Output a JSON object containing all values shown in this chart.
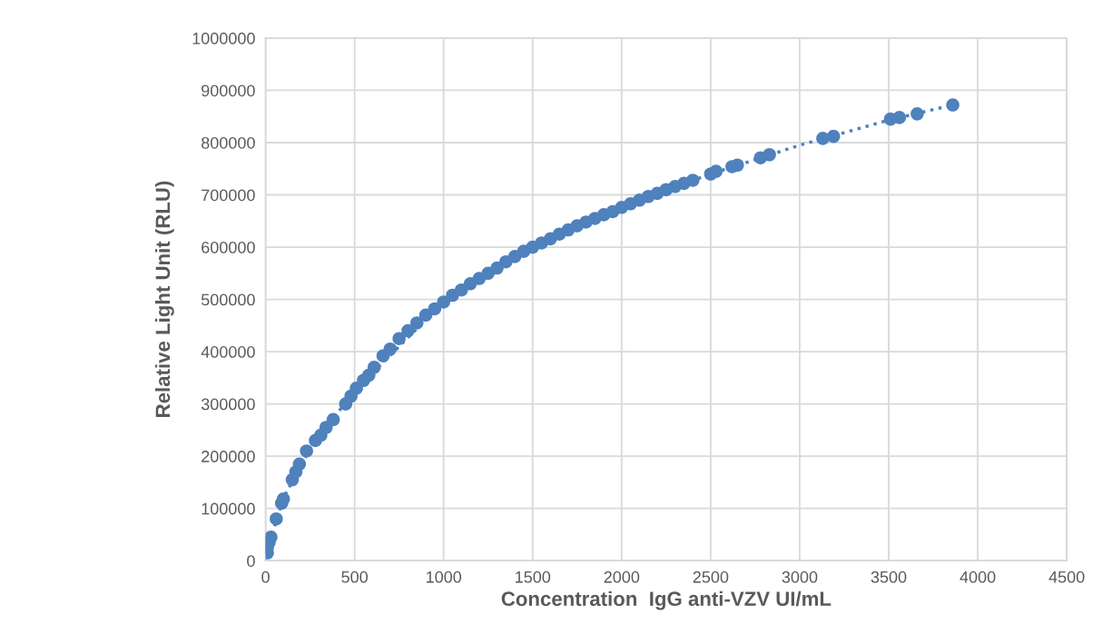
{
  "chart_data": {
    "type": "scatter",
    "xlabel": "Concentration  IgG anti-VZV UI/mL",
    "ylabel": "Relative Light Unit (RLU)",
    "xlim": [
      0,
      4500
    ],
    "xticks": [
      0,
      500,
      1000,
      1500,
      2000,
      2500,
      3000,
      3500,
      4000,
      4500
    ],
    "ylim": [
      0,
      1000000
    ],
    "yticks": [
      0,
      100000,
      200000,
      300000,
      400000,
      500000,
      600000,
      700000,
      800000,
      900000,
      1000000
    ],
    "grid": true,
    "marker": "circle",
    "series": [
      {
        "color": "#4f81bd",
        "x": [
          10,
          10,
          20,
          30,
          60,
          90,
          100,
          150,
          170,
          190,
          230,
          280,
          310,
          340,
          380,
          450,
          480,
          510,
          550,
          580,
          610,
          660,
          700,
          750,
          800,
          850,
          900,
          950,
          1000,
          1050,
          1100,
          1150,
          1200,
          1250,
          1300,
          1350,
          1400,
          1450,
          1500,
          1550,
          1600,
          1650,
          1700,
          1750,
          1800,
          1850,
          1900,
          1950,
          2000,
          2050,
          2100,
          2150,
          2200,
          2250,
          2300,
          2350,
          2400,
          2500,
          2530,
          2620,
          2650,
          2780,
          2830,
          3130,
          3190,
          3510,
          3560,
          3660,
          3860
        ],
        "values": [
          15000,
          25000,
          35000,
          45000,
          80000,
          110000,
          118000,
          155000,
          170000,
          185000,
          210000,
          230000,
          240000,
          255000,
          270000,
          300000,
          315000,
          330000,
          345000,
          355000,
          370000,
          392000,
          405000,
          425000,
          440000,
          455000,
          470000,
          482000,
          495000,
          508000,
          518000,
          530000,
          540000,
          550000,
          560000,
          572000,
          582000,
          592000,
          600000,
          608000,
          616000,
          625000,
          633000,
          641000,
          648000,
          655000,
          662000,
          668000,
          676000,
          683000,
          690000,
          697000,
          703000,
          710000,
          716000,
          722000,
          728000,
          740000,
          745000,
          754000,
          757000,
          771000,
          777000,
          808000,
          812000,
          845000,
          848000,
          855000,
          872000
        ]
      },
      {
        "type": "line",
        "color": "#4f81bd",
        "line_style": "dotted",
        "marker": "none",
        "x": [
          10,
          100,
          250,
          500,
          1000,
          1500,
          2000,
          2500,
          3000,
          3500,
          3860
        ],
        "values": [
          20000,
          120000,
          215000,
          325000,
          495000,
          600000,
          676000,
          740000,
          795000,
          843000,
          872000
        ]
      }
    ]
  }
}
